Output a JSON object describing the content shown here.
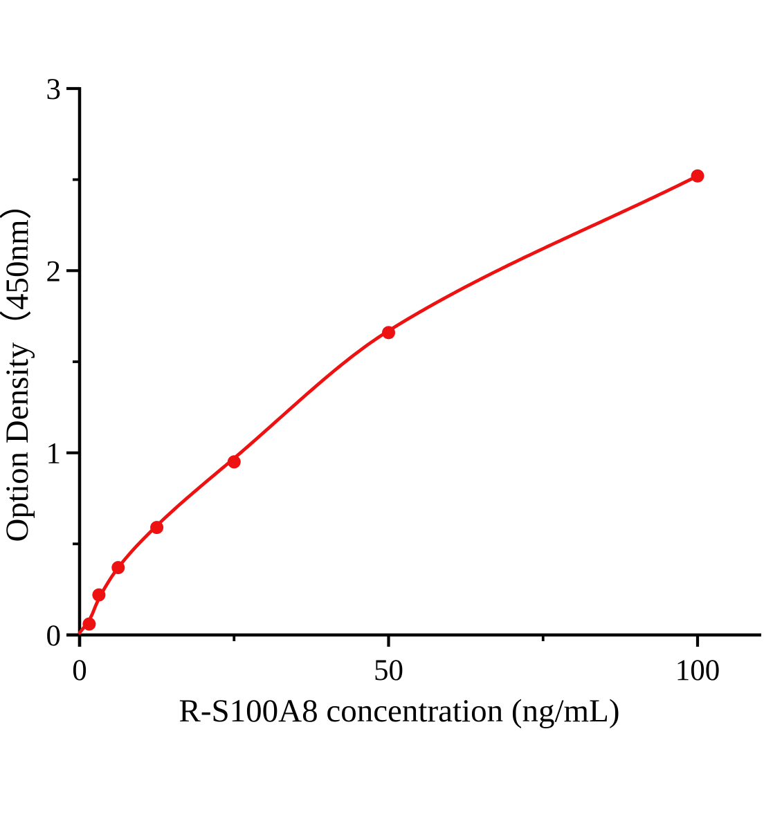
{
  "figure": {
    "background": "#ffffff"
  },
  "chart_data": {
    "type": "scatter",
    "title": "",
    "xlabel": "R-S100A8 concentration (ng/mL)",
    "ylabel": "Option Density（450nm）",
    "x": [
      1.56,
      3.125,
      6.25,
      12.5,
      25,
      50,
      100
    ],
    "y": [
      0.06,
      0.22,
      0.37,
      0.59,
      0.95,
      1.66,
      2.52
    ],
    "fit_curve_anchors": [
      [
        0,
        0.012
      ],
      [
        1.56,
        0.08
      ],
      [
        3.125,
        0.2
      ],
      [
        6.25,
        0.37
      ],
      [
        12.5,
        0.6
      ],
      [
        25,
        0.97
      ],
      [
        50,
        1.67
      ],
      [
        100,
        2.52
      ]
    ],
    "xlim": [
      0,
      110.3
    ],
    "ylim": [
      0,
      3
    ],
    "x_major_ticks": [
      0,
      50,
      100
    ],
    "x_minor_ticks": [
      25,
      75
    ],
    "y_major_ticks": [
      0,
      1,
      2,
      3
    ],
    "y_minor_ticks": [
      0.5,
      1.5,
      2.5
    ],
    "grid": false,
    "legend": "none",
    "colors": {
      "marker": "#ee1111",
      "line": "#ee1111",
      "axis": "#000000",
      "text": "#000000",
      "background": "#ffffff"
    }
  }
}
